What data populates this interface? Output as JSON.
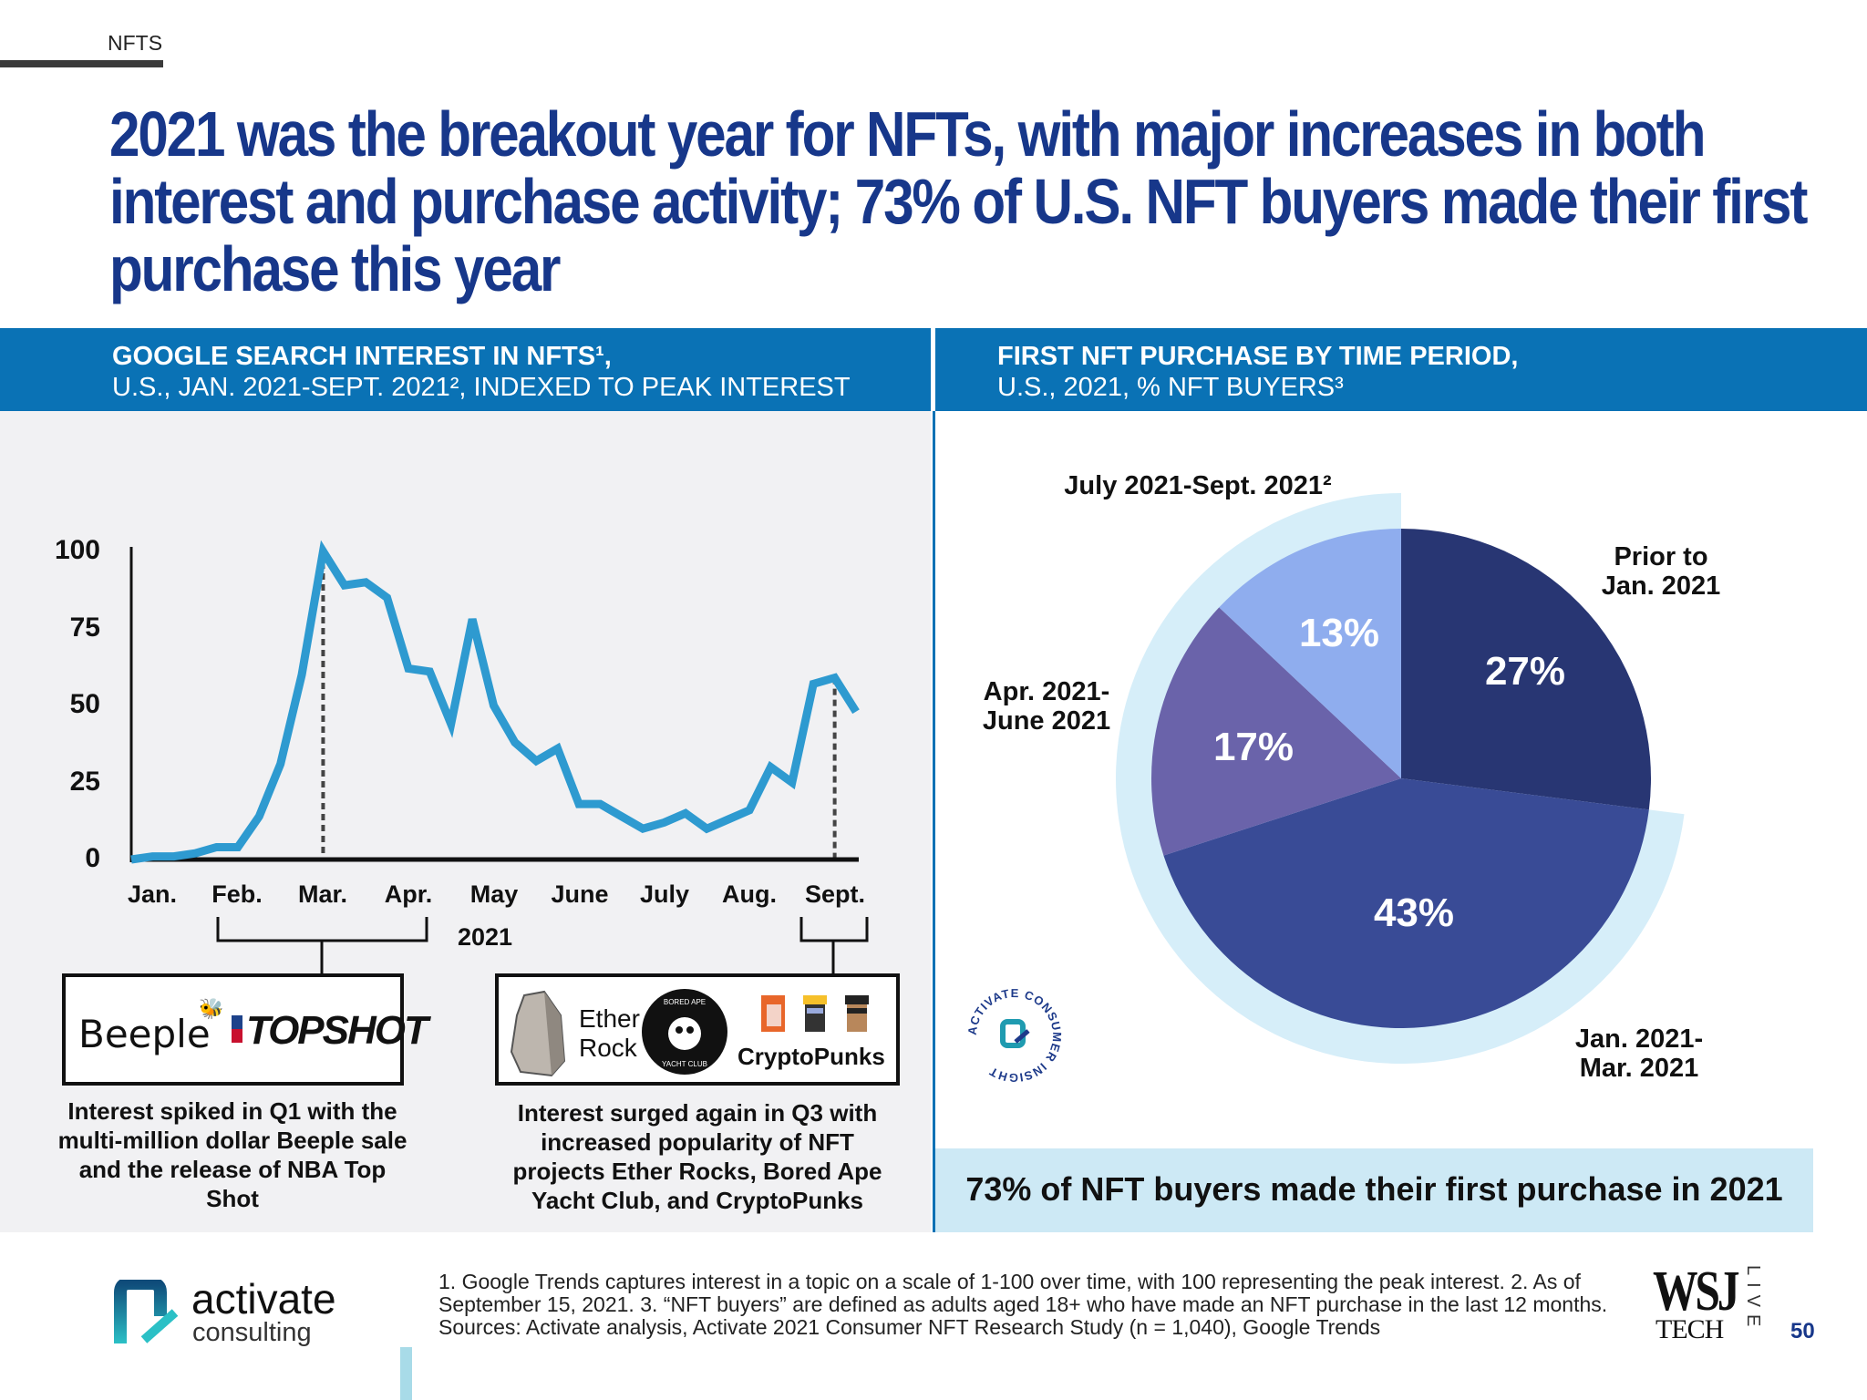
{
  "section": "NFTS",
  "title": "2021 was the breakout year for NFTs, with major increases in both interest and purchase activity; 73% of U.S. NFT buyers made their first purchase this year",
  "left_header": {
    "line1": "GOOGLE SEARCH INTEREST IN NFTS¹,",
    "line2": "U.S., JAN. 2021-SEPT. 2021², INDEXED TO PEAK INTEREST"
  },
  "right_header": {
    "line1": "FIRST NFT PURCHASE BY TIME PERIOD,",
    "line2": "U.S., 2021, % NFT BUYERS³"
  },
  "annotations": {
    "q1_logos": {
      "beeple": "Beeple",
      "topshot": "TOPSHOT"
    },
    "q1_caption": "Interest spiked in Q1 with the multi-million dollar Beeple sale and the release of NBA Top Shot",
    "q3_logos": {
      "ether_rock": "Ether Rock",
      "bayc_top": "BORED APE",
      "bayc_bottom": "YACHT CLUB",
      "cryptopunks": "CryptoPunks"
    },
    "q3_caption": "Interest surged again in Q3 with increased popularity of NFT projects Ether Rocks, Bored Ape Yacht Club, and CryptoPunks"
  },
  "callout": "73% of NFT buyers made their first purchase in 2021",
  "badge": "ACTIVATE CONSUMER INSIGHT",
  "footer": {
    "logo_main": "activate",
    "logo_sub": "consulting",
    "notes": [
      "1. Google Trends captures interest in a topic on a scale of 1-100 over time, with 100 representing the peak interest.  2. As of",
      "September 15, 2021.  3. “NFT buyers” are defined as adults aged 18+ who have made an NFT purchase in the last 12 months.",
      "Sources: Activate analysis, Activate 2021 Consumer NFT Research Study (n = 1,040), Google Trends"
    ],
    "wsj": "WSJ",
    "tech": "TECH",
    "live": "LIVE",
    "page": "50"
  },
  "chart_data": [
    {
      "type": "line",
      "xlabel": "2021",
      "ylim": [
        0,
        100
      ],
      "yticks": [
        "0",
        "25",
        "50",
        "75",
        "100"
      ],
      "xticks": [
        "Jan.",
        "Feb.",
        "Mar.",
        "Apr.",
        "May",
        "June",
        "July",
        "Aug.",
        "Sept."
      ],
      "grid": false,
      "color": "#2e9ad0",
      "x": [
        "2021-01-03",
        "2021-01-10",
        "2021-01-17",
        "2021-01-24",
        "2021-01-31",
        "2021-02-07",
        "2021-02-14",
        "2021-02-21",
        "2021-02-28",
        "2021-03-07",
        "2021-03-14",
        "2021-03-21",
        "2021-03-28",
        "2021-04-04",
        "2021-04-11",
        "2021-04-18",
        "2021-04-25",
        "2021-05-02",
        "2021-05-09",
        "2021-05-16",
        "2021-05-23",
        "2021-05-30",
        "2021-06-06",
        "2021-06-13",
        "2021-06-20",
        "2021-06-27",
        "2021-07-04",
        "2021-07-11",
        "2021-07-18",
        "2021-07-25",
        "2021-08-01",
        "2021-08-08",
        "2021-08-15",
        "2021-08-22",
        "2021-08-29"
      ],
      "y": [
        0,
        1,
        1,
        2,
        4,
        4,
        14,
        31,
        60,
        100,
        89,
        90,
        85,
        62,
        61,
        44,
        78,
        50,
        38,
        32,
        36,
        18,
        18,
        14,
        10,
        12,
        15,
        10,
        13,
        16,
        30,
        25,
        57,
        59,
        48
      ],
      "markers": [
        {
          "label": "Mar.",
          "at_index": 9
        },
        {
          "label": "Sept.",
          "at_index": 33
        }
      ]
    },
    {
      "type": "pie",
      "categories": [
        "Prior to Jan. 2021",
        "Jan. 2021-Mar. 2021",
        "Apr. 2021-June 2021",
        "July 2021-Sept. 2021²"
      ],
      "values": [
        27,
        43,
        17,
        13
      ],
      "labels": [
        "27%",
        "43%",
        "17%",
        "13%"
      ],
      "colors": [
        "#283673",
        "#394b96",
        "#6a63aa",
        "#8fadee"
      ],
      "highlight_color": "#d6eef9"
    }
  ]
}
